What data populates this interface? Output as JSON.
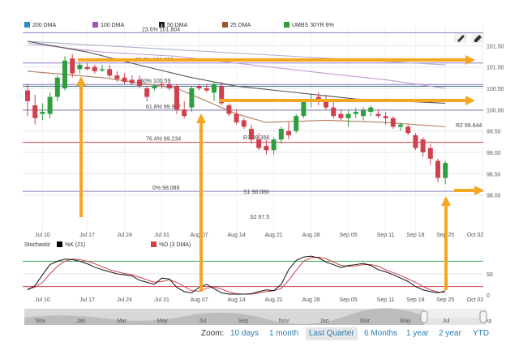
{
  "legend": [
    {
      "label": "200 DMA",
      "color": "#2b8cbe"
    },
    {
      "label": "100 DMA",
      "color": "#9b59b6"
    },
    {
      "label": "50 DMA",
      "color": "#222222"
    },
    {
      "label": "25 DMA",
      "color": "#a0522d"
    },
    {
      "label": "UMBS 30YR 6%",
      "color": "#2e9e3e"
    }
  ],
  "colors": {
    "up": "#2e9e3e",
    "down": "#d0404d",
    "arrow": "#f5a623",
    "fib_line": "#8e7cc3",
    "red_line": "#d0404d",
    "teal_line": "#2a6f7f",
    "grid": "#e5e5e5"
  },
  "icons": [
    "pencil-icon",
    "eraser-icon"
  ],
  "chart_data": [
    {
      "type": "candlestick",
      "title": "",
      "series_name": "UMBS 30YR 6%",
      "ylim": [
        97.1,
        102.0
      ],
      "y_ticks": [
        "101.50",
        "101.00",
        "100.50",
        "100.00",
        "99.50",
        "99.00",
        "98.50",
        "98.00"
      ],
      "y_tick_values": [
        101.5,
        101.0,
        100.5,
        100.0,
        99.5,
        99.0,
        98.5,
        98.0
      ],
      "x_ticks": [
        "Jul 10",
        "Jul 17",
        "Jul 24",
        "Jul 31",
        "Aug 07",
        "Aug 14",
        "Aug 21",
        "Aug 28",
        "Sep 05",
        "Sep 11",
        "Sep 18",
        "Sep 25",
        "Oct 02"
      ],
      "candles": [
        {
          "o": 100.45,
          "h": 100.6,
          "l": 99.85,
          "c": 100.2
        },
        {
          "o": 100.1,
          "h": 100.35,
          "l": 99.65,
          "c": 99.8
        },
        {
          "o": 99.9,
          "h": 100.15,
          "l": 99.75,
          "c": 99.95
        },
        {
          "o": 99.9,
          "h": 100.4,
          "l": 99.8,
          "c": 100.3
        },
        {
          "o": 100.3,
          "h": 100.8,
          "l": 100.2,
          "c": 100.75
        },
        {
          "o": 100.5,
          "h": 101.25,
          "l": 100.45,
          "c": 101.15
        },
        {
          "o": 101.2,
          "h": 101.3,
          "l": 100.75,
          "c": 100.85
        },
        {
          "o": 100.95,
          "h": 101.1,
          "l": 100.85,
          "c": 101.05
        },
        {
          "o": 101.0,
          "h": 101.1,
          "l": 100.92,
          "c": 100.95
        },
        {
          "o": 101.0,
          "h": 101.05,
          "l": 100.85,
          "c": 100.9
        },
        {
          "o": 100.95,
          "h": 101.05,
          "l": 100.88,
          "c": 100.95
        },
        {
          "o": 100.95,
          "h": 101.05,
          "l": 100.75,
          "c": 100.8
        },
        {
          "o": 100.8,
          "h": 100.9,
          "l": 100.65,
          "c": 100.72
        },
        {
          "o": 100.75,
          "h": 100.85,
          "l": 100.6,
          "c": 100.65
        },
        {
          "o": 100.7,
          "h": 100.8,
          "l": 100.58,
          "c": 100.62
        },
        {
          "o": 100.7,
          "h": 100.8,
          "l": 100.5,
          "c": 100.55
        },
        {
          "o": 100.5,
          "h": 100.55,
          "l": 100.2,
          "c": 100.3
        },
        {
          "o": 100.5,
          "h": 100.6,
          "l": 100.45,
          "c": 100.55
        },
        {
          "o": 100.6,
          "h": 100.65,
          "l": 100.5,
          "c": 100.58
        },
        {
          "o": 100.6,
          "h": 100.65,
          "l": 100.45,
          "c": 100.5
        },
        {
          "o": 100.55,
          "h": 100.6,
          "l": 99.9,
          "c": 100.0
        },
        {
          "o": 100.0,
          "h": 100.2,
          "l": 99.8,
          "c": 99.85
        },
        {
          "o": 100.05,
          "h": 100.55,
          "l": 99.95,
          "c": 100.5
        },
        {
          "o": 100.55,
          "h": 100.6,
          "l": 100.45,
          "c": 100.5
        },
        {
          "o": 100.5,
          "h": 100.6,
          "l": 100.4,
          "c": 100.45
        },
        {
          "o": 100.4,
          "h": 100.65,
          "l": 100.2,
          "c": 100.6
        },
        {
          "o": 100.55,
          "h": 100.65,
          "l": 100.1,
          "c": 100.15
        },
        {
          "o": 100.1,
          "h": 100.15,
          "l": 99.85,
          "c": 99.9
        },
        {
          "o": 99.9,
          "h": 100.0,
          "l": 99.65,
          "c": 99.7
        },
        {
          "o": 99.75,
          "h": 99.8,
          "l": 99.55,
          "c": 99.6
        },
        {
          "o": 99.55,
          "h": 99.65,
          "l": 99.2,
          "c": 99.3
        },
        {
          "o": 99.3,
          "h": 99.45,
          "l": 99.05,
          "c": 99.1
        },
        {
          "o": 99.15,
          "h": 99.3,
          "l": 98.95,
          "c": 99.05
        },
        {
          "o": 99.05,
          "h": 99.35,
          "l": 98.95,
          "c": 99.3
        },
        {
          "o": 99.3,
          "h": 99.6,
          "l": 99.2,
          "c": 99.55
        },
        {
          "o": 99.5,
          "h": 99.7,
          "l": 99.3,
          "c": 99.4
        },
        {
          "o": 99.5,
          "h": 99.9,
          "l": 99.45,
          "c": 99.85
        },
        {
          "o": 99.85,
          "h": 100.25,
          "l": 99.8,
          "c": 100.2
        },
        {
          "o": 100.2,
          "h": 100.35,
          "l": 100.05,
          "c": 100.25
        },
        {
          "o": 100.3,
          "h": 100.4,
          "l": 100.1,
          "c": 100.2
        },
        {
          "o": 100.25,
          "h": 100.35,
          "l": 100.0,
          "c": 100.05
        },
        {
          "o": 100.05,
          "h": 100.25,
          "l": 99.8,
          "c": 99.85
        },
        {
          "o": 99.9,
          "h": 100.0,
          "l": 99.75,
          "c": 99.8
        },
        {
          "o": 99.8,
          "h": 100.0,
          "l": 99.6,
          "c": 99.9
        },
        {
          "o": 99.9,
          "h": 100.05,
          "l": 99.8,
          "c": 99.95
        },
        {
          "o": 99.85,
          "h": 100.05,
          "l": 99.75,
          "c": 100.0
        },
        {
          "o": 99.95,
          "h": 100.1,
          "l": 99.85,
          "c": 100.05
        },
        {
          "o": 99.9,
          "h": 100.0,
          "l": 99.8,
          "c": 99.85
        },
        {
          "o": 99.85,
          "h": 99.95,
          "l": 99.65,
          "c": 99.8
        },
        {
          "o": 99.8,
          "h": 99.85,
          "l": 99.55,
          "c": 99.6
        },
        {
          "o": 99.6,
          "h": 99.7,
          "l": 99.5,
          "c": 99.65
        },
        {
          "o": 99.6,
          "h": 99.65,
          "l": 99.4,
          "c": 99.45
        },
        {
          "o": 99.4,
          "h": 99.45,
          "l": 99.05,
          "c": 99.1
        },
        {
          "o": 99.3,
          "h": 99.35,
          "l": 98.9,
          "c": 99.0
        },
        {
          "o": 99.1,
          "h": 99.2,
          "l": 98.7,
          "c": 98.85
        },
        {
          "o": 98.8,
          "h": 98.85,
          "l": 98.3,
          "c": 98.4
        },
        {
          "o": 98.4,
          "h": 98.8,
          "l": 98.25,
          "c": 98.75
        }
      ],
      "moving_averages": [
        {
          "name": "200 DMA",
          "x": [
            0,
            56
          ],
          "y": [
            101.6,
            101.05
          ]
        },
        {
          "name": "100 DMA",
          "x": [
            0,
            10,
            20,
            30,
            40,
            48,
            56
          ],
          "y": [
            101.55,
            101.35,
            101.25,
            101.05,
            100.85,
            100.7,
            100.5
          ]
        },
        {
          "name": "50 DMA",
          "x": [
            0,
            8,
            16,
            22,
            28,
            36,
            44,
            50,
            56
          ],
          "y": [
            101.6,
            101.35,
            101.0,
            100.75,
            100.55,
            100.4,
            100.25,
            100.2,
            100.15
          ]
        },
        {
          "name": "25 DMA",
          "x": [
            0,
            10,
            20,
            28,
            32,
            40,
            48,
            56
          ],
          "y": [
            100.9,
            100.75,
            100.5,
            99.9,
            99.7,
            99.75,
            99.7,
            99.6
          ]
        }
      ],
      "levels": [
        {
          "label": "23.6% 101.804",
          "value": 101.804,
          "kind": "fib"
        },
        {
          "label": "38.2% 101.093",
          "value": 101.093,
          "kind": "fib"
        },
        {
          "label": "50% 100.59",
          "value": 100.59,
          "kind": "fib"
        },
        {
          "label": "61.8% 99.987",
          "value": 99.987,
          "kind": "fib"
        },
        {
          "label": "76.4% 99.234",
          "value": 99.234,
          "kind": "red"
        },
        {
          "label": "0% 98.086",
          "value": 98.086,
          "kind": "fib"
        },
        {
          "label": "R2 99.644",
          "value": 99.644,
          "kind": "text"
        },
        {
          "label": "R1 99.356",
          "value": 99.356,
          "kind": "text"
        },
        {
          "label": "S1 98.086",
          "value": 98.086,
          "kind": "text"
        },
        {
          "label": "S2 97.5",
          "value": 97.5,
          "kind": "text"
        }
      ],
      "teal_level": 100.55
    },
    {
      "type": "line",
      "title": "Stochastic",
      "series": [
        {
          "name": "%K (21)",
          "values": [
            12,
            22,
            48,
            72,
            80,
            85,
            84,
            80,
            74,
            66,
            60,
            55,
            50,
            48,
            45,
            35,
            30,
            25,
            40,
            38,
            18,
            8,
            5,
            18,
            25,
            15,
            5,
            2,
            2,
            2,
            3,
            8,
            12,
            10,
            25,
            60,
            82,
            90,
            92,
            88,
            78,
            72,
            65,
            70,
            72,
            75,
            70,
            60,
            55,
            48,
            40,
            32,
            20,
            12,
            8,
            5,
            10
          ]
        },
        {
          "name": "%D (3 DMA)",
          "values": [
            15,
            18,
            30,
            50,
            68,
            80,
            85,
            84,
            80,
            74,
            67,
            60,
            55,
            51,
            48,
            42,
            36,
            30,
            32,
            36,
            30,
            20,
            10,
            9,
            16,
            19,
            14,
            7,
            3,
            2,
            2,
            5,
            8,
            10,
            15,
            35,
            58,
            80,
            88,
            90,
            86,
            78,
            70,
            68,
            69,
            72,
            72,
            68,
            60,
            53,
            46,
            38,
            30,
            20,
            12,
            7,
            6
          ]
        }
      ],
      "ylim": [
        0,
        100
      ],
      "y_ticks": [
        "0",
        "50"
      ],
      "y_tick_values": [
        0,
        50
      ],
      "levels": [
        20,
        80
      ],
      "x_ticks": [
        "Jul 10",
        "Jul 17",
        "Jul 24",
        "Jul 31",
        "Aug 07",
        "Aug 14",
        "Aug 21",
        "Aug 28",
        "Sep 05",
        "Sep 11",
        "Sep 18",
        "Sep 25",
        "Oct 02"
      ]
    }
  ],
  "navigator": {
    "labels": [
      "Nov",
      "Jan",
      "Mar",
      "May",
      "Jul",
      "Sep",
      "Nov",
      "Jan",
      "Mar",
      "May",
      "Jul",
      "Sep"
    ],
    "handle_left_icon": "handle-grip-icon",
    "handle_right_icon": "handle-grip-icon",
    "selected_start_fraction": 0.865,
    "selected_end_fraction": 1.0
  },
  "zoom": {
    "label": "Zoom:",
    "buttons": [
      "10 days",
      "1 month",
      "Last Quarter",
      "6 Months",
      "1 year",
      "2 year",
      "YTD"
    ],
    "active": "Last Quarter"
  },
  "annotations": {
    "arrows_color": "#f5a623"
  }
}
